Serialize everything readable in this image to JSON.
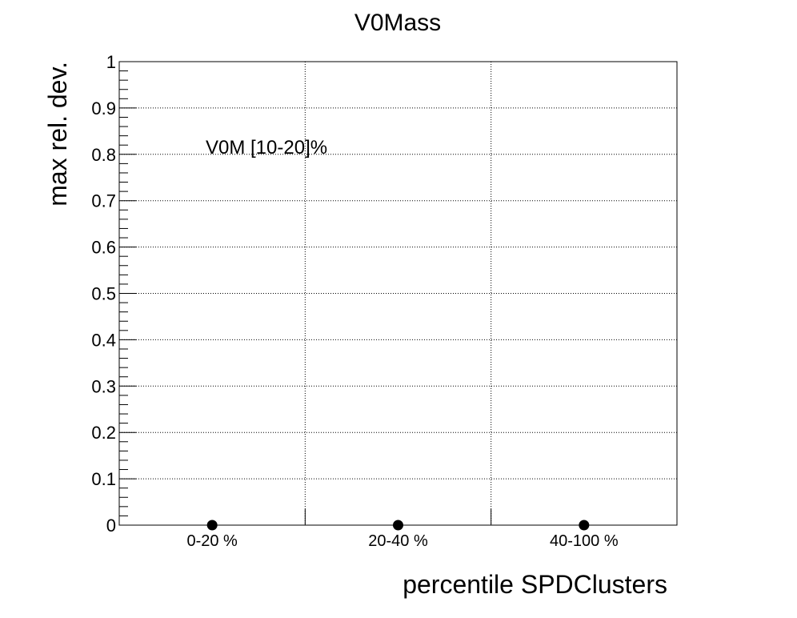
{
  "chart_data": {
    "type": "scatter",
    "title": "V0Mass",
    "xlabel": "percentile SPDClusters",
    "ylabel": "max rel. dev.",
    "categories": [
      "0-20 %",
      "20-40 %",
      "40-100 %"
    ],
    "values": [
      0,
      0,
      0
    ],
    "ylim": [
      0,
      1
    ],
    "yticks": [
      "0",
      "0.1",
      "0.2",
      "0.3",
      "0.4",
      "0.5",
      "0.6",
      "0.7",
      "0.8",
      "0.9",
      "1"
    ],
    "annotation": "V0M [10-20]%",
    "grid": true,
    "marker_color": "#000000"
  }
}
